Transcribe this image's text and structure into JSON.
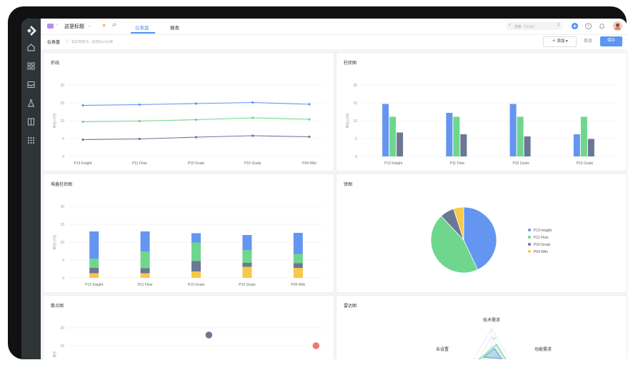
{
  "topbar": {
    "page_title": "这是标题",
    "tabs": [
      {
        "label": "仪表盘",
        "active": true
      },
      {
        "label": "报表",
        "active": false
      }
    ],
    "search_placeholder": "搜索（⌘+K）"
  },
  "subbar": {
    "label": "仪表盘",
    "hint": "非实时统计，延迟约10分钟",
    "add_label": "添加",
    "cancel_label": "取消",
    "save_label": "保存"
  },
  "panels": {
    "line": "折线",
    "bar": "柱状图",
    "stacked": "堆叠柱状图",
    "pie": "饼图",
    "scatter": "散点图",
    "radar": "雷达图"
  },
  "colors": {
    "blue": "#6495f0",
    "green": "#6fd68e",
    "slate": "#6b7894",
    "yellow": "#f7c94a",
    "red": "#f07a6e",
    "accent": "#4f8cf7"
  },
  "chart_data": [
    {
      "type": "line",
      "title": "折线",
      "ylabel": "单位(小时)",
      "ylim": [
        0,
        20
      ],
      "yticks": [
        0,
        5,
        10,
        15,
        20
      ],
      "categories": [
        "P13 Insight",
        "P11 Flow",
        "P10 Goals",
        "P10 Goals",
        "P04 Wiki"
      ],
      "series": [
        {
          "color": "#6495f0",
          "values": [
            14.3,
            14.5,
            14.8,
            15.1,
            14.6
          ]
        },
        {
          "color": "#6fd68e",
          "values": [
            9.7,
            9.9,
            10.3,
            10.8,
            10.4
          ]
        },
        {
          "color": "#6b7894",
          "values": [
            4.7,
            4.9,
            5.4,
            5.8,
            5.5
          ]
        }
      ]
    },
    {
      "type": "bar",
      "title": "柱状图",
      "ylabel": "单位(小时)",
      "ylim": [
        0,
        20
      ],
      "yticks": [
        0,
        5,
        10,
        15,
        20
      ],
      "categories": [
        "P13 Insight",
        "P11 Flow",
        "P10 Goals",
        "P10 Goals"
      ],
      "series": [
        {
          "color": "#6495f0",
          "values": [
            14.7,
            12.2,
            14.7,
            6.2
          ]
        },
        {
          "color": "#6fd68e",
          "values": [
            11.1,
            11.1,
            11.1,
            11.1
          ]
        },
        {
          "color": "#6b7894",
          "values": [
            6.7,
            6.2,
            5.6,
            4.9
          ]
        }
      ]
    },
    {
      "type": "bar",
      "stacked": true,
      "title": "堆叠柱状图",
      "ylabel": "单位(小时)",
      "ylim": [
        0,
        20
      ],
      "yticks": [
        0,
        5,
        10,
        15,
        20
      ],
      "categories": [
        "P13 Insight",
        "P11 Flow",
        "P10 Goals",
        "P10 Goals",
        "P04 Wiki"
      ],
      "series": [
        {
          "color": "#f7c94a",
          "values": [
            1.3,
            1.3,
            1.8,
            3.1,
            2.8
          ]
        },
        {
          "color": "#6b7894",
          "values": [
            1.5,
            1.4,
            2.9,
            1.1,
            1.3
          ]
        },
        {
          "color": "#6fd68e",
          "values": [
            2.6,
            4.7,
            5.2,
            3.6,
            2.6
          ]
        },
        {
          "color": "#6495f0",
          "values": [
            7.6,
            5.6,
            2.6,
            4.2,
            5.9
          ]
        }
      ]
    },
    {
      "type": "pie",
      "title": "饼图",
      "legend": "right",
      "slices": [
        {
          "label": "P13 Insight",
          "value": 43,
          "color": "#6495f0"
        },
        {
          "label": "P11 Flow",
          "value": 45,
          "color": "#6fd68e"
        },
        {
          "label": "P10 Goals",
          "value": 7,
          "color": "#6b7894"
        },
        {
          "label": "P04 Wiki",
          "value": 5,
          "color": "#f7c94a"
        }
      ]
    },
    {
      "type": "scatter",
      "title": "散点图",
      "ylabel": "单位",
      "yticks": [
        15,
        20
      ],
      "points": [
        {
          "x": 0.55,
          "y": 18,
          "color": "#6b7894"
        },
        {
          "x": 0.97,
          "y": 15,
          "color": "#f07a6e"
        }
      ]
    },
    {
      "type": "radar",
      "title": "雷达图",
      "indicators": [
        "技术需求",
        "功能需求",
        "未设置"
      ],
      "ring_label": "2h"
    }
  ]
}
